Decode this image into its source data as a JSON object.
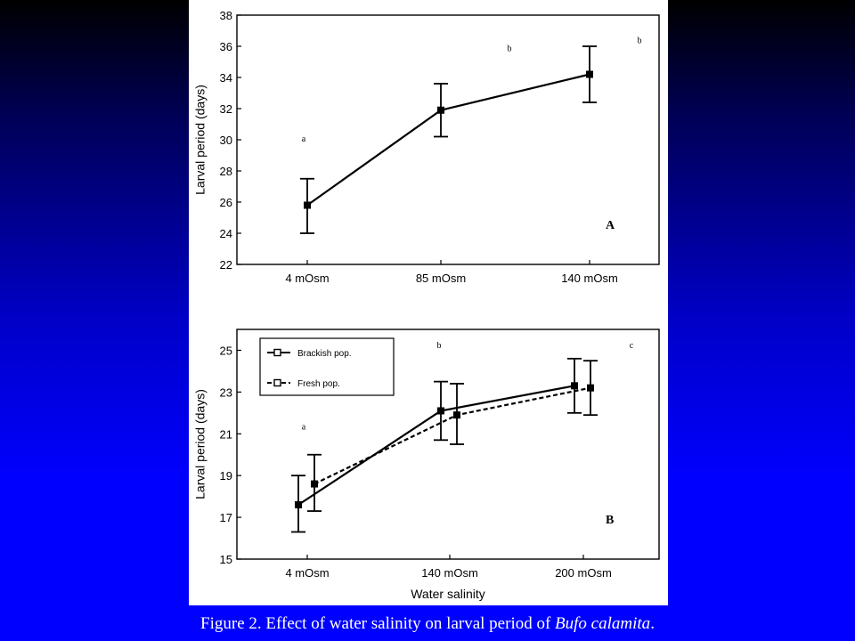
{
  "caption": {
    "text": "Figure 2. Effect of water salinity on larval period of ",
    "species": "Bufo calamita",
    "end": "."
  },
  "chart_data": [
    {
      "type": "line",
      "panel_label": "A",
      "title": "",
      "xlabel": "",
      "ylabel": "Larval period (days)",
      "categories": [
        "4 mOsm",
        "85 mOsm",
        "140 mOsm"
      ],
      "ylim": [
        22,
        38
      ],
      "yticks": [
        22,
        24,
        26,
        28,
        30,
        32,
        34,
        36,
        38
      ],
      "grid": false,
      "series": [
        {
          "values": [
            25.8,
            31.9,
            34.2
          ],
          "error_low": [
            24.0,
            30.2,
            32.4
          ],
          "error_high": [
            27.5,
            33.6,
            36.0
          ],
          "line_style": "solid",
          "marker": "filled-square"
        }
      ],
      "annotations": [
        {
          "text": "a",
          "x": "4 mOsm",
          "y": 29.9
        },
        {
          "text": "b",
          "x": "85 mOsm",
          "y": 35.7
        },
        {
          "text": "b",
          "x": "140 mOsm",
          "y": 36.2
        }
      ]
    },
    {
      "type": "line",
      "panel_label": "B",
      "title": "",
      "xlabel": "Water salinity",
      "ylabel": "Larval period (days)",
      "categories": [
        "4 mOsm",
        "140 mOsm",
        "200 mOsm"
      ],
      "ylim": [
        15,
        26
      ],
      "yticks": [
        15,
        17,
        19,
        21,
        23,
        25
      ],
      "grid": false,
      "legend_position": "top-left",
      "series": [
        {
          "name": "Brackish pop.",
          "values": [
            17.6,
            22.1,
            23.3
          ],
          "error_low": [
            16.3,
            20.7,
            22.0
          ],
          "error_high": [
            19.0,
            23.5,
            24.6
          ],
          "line_style": "solid",
          "marker": "filled-square"
        },
        {
          "name": "Fresh pop.",
          "values": [
            18.6,
            21.9,
            23.2
          ],
          "error_low": [
            17.3,
            20.5,
            21.9
          ],
          "error_high": [
            20.0,
            23.4,
            24.5
          ],
          "line_style": "dashed",
          "marker": "filled-square"
        }
      ],
      "annotations": [
        {
          "text": "a",
          "x": "4 mOsm",
          "y": 21.2
        },
        {
          "text": "b",
          "x": "140 mOsm",
          "y": 25.1
        },
        {
          "text": "c",
          "x": "200 mOsm",
          "y": 25.1
        }
      ]
    }
  ]
}
